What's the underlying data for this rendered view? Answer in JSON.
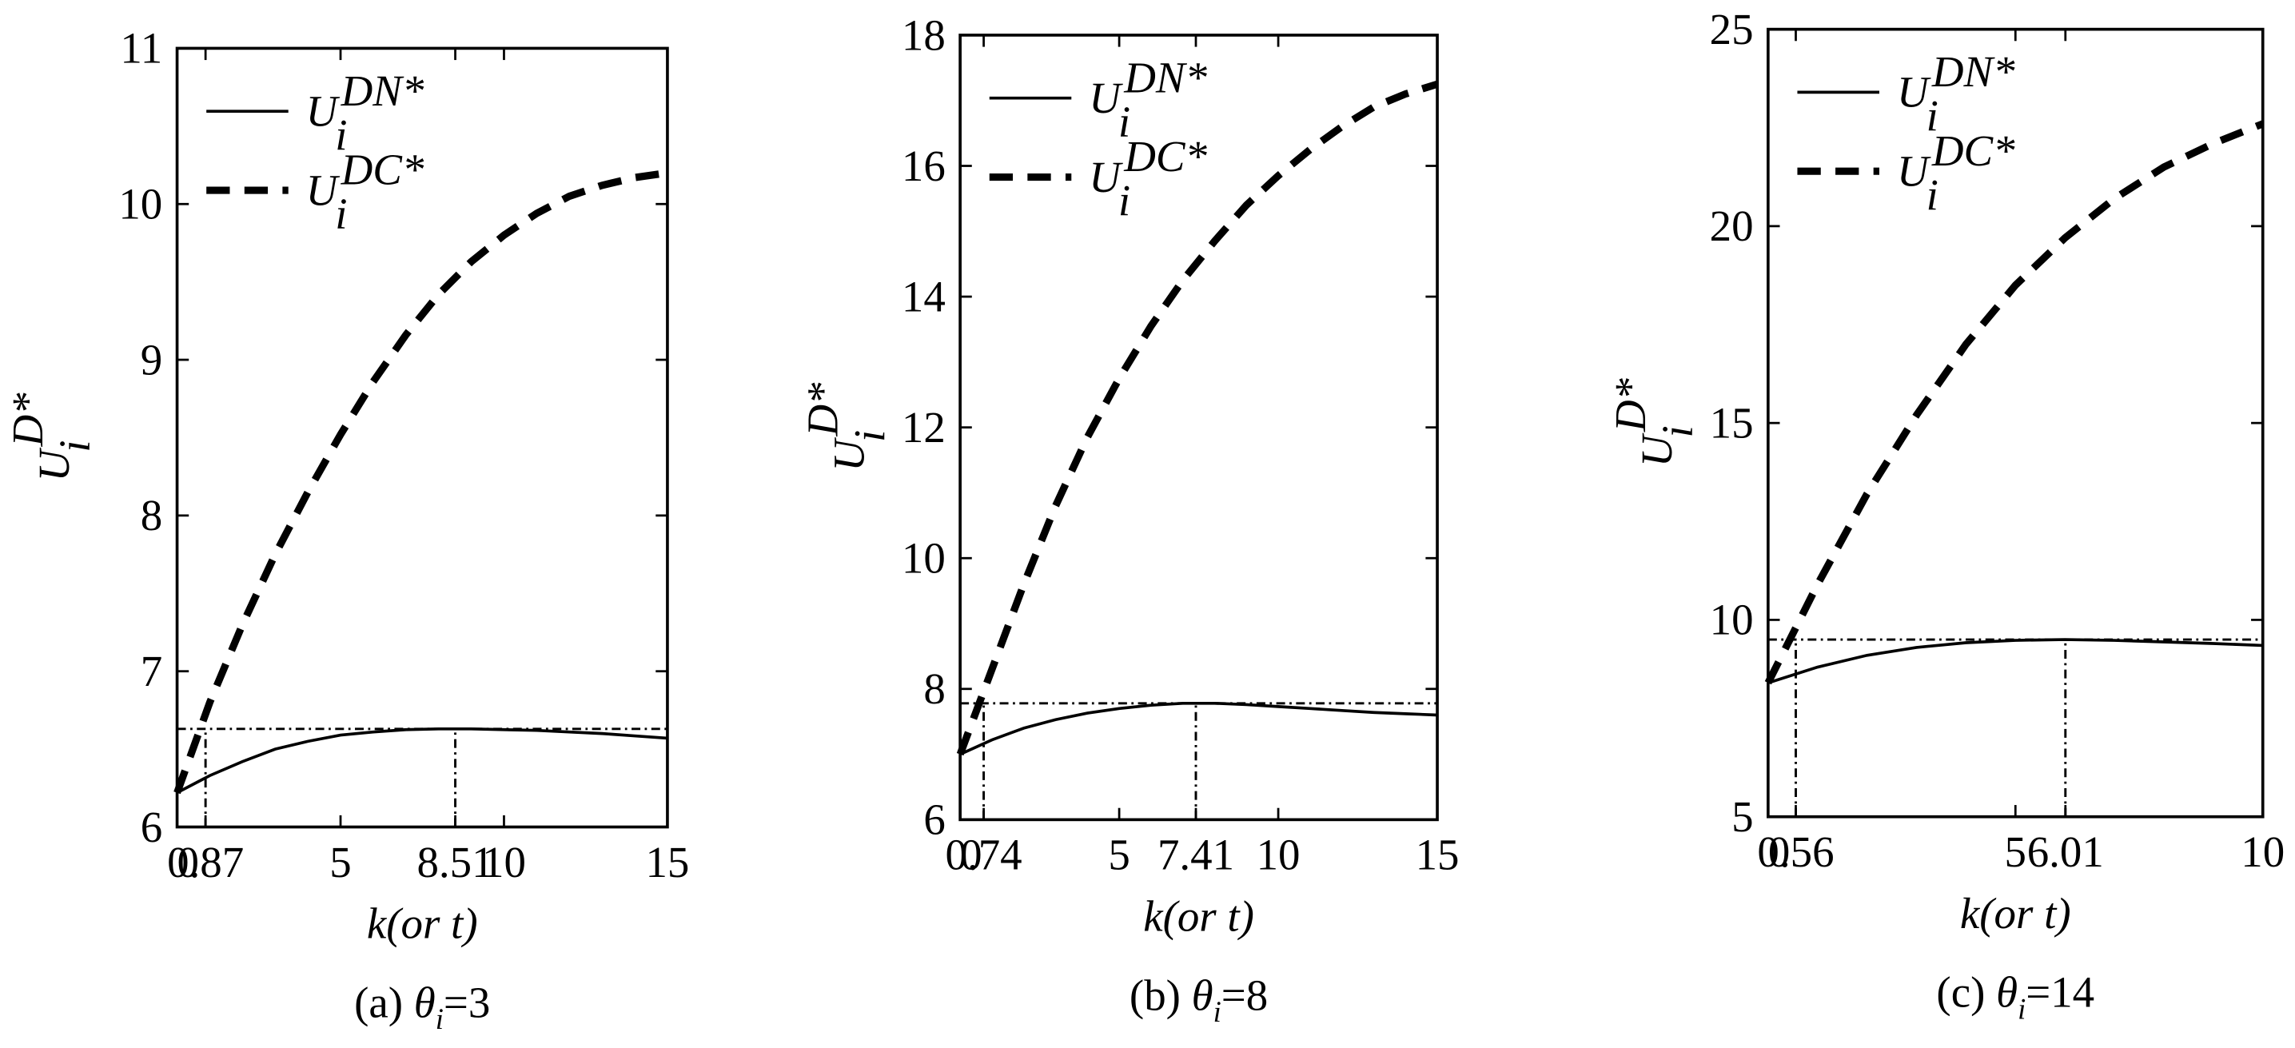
{
  "chart_data": [
    {
      "type": "line",
      "caption": {
        "prefix": "(a) ",
        "symbol": "θ",
        "subscript": "i",
        "suffix": "=3"
      },
      "xlabel": "k(or t)",
      "ylabel": {
        "symbol": "U",
        "superscript": "D*",
        "subscript": "i"
      },
      "x": [
        0,
        1,
        2,
        3,
        4,
        5,
        6,
        7,
        8,
        9,
        10,
        11,
        12,
        13,
        14,
        15
      ],
      "series": [
        {
          "name": "U",
          "subscript": "i",
          "superscript": "DN*",
          "color": "#000000",
          "style": "solid",
          "values": [
            6.22,
            6.33,
            6.42,
            6.5,
            6.55,
            6.59,
            6.61,
            6.625,
            6.63,
            6.63,
            6.625,
            6.62,
            6.61,
            6.6,
            6.585,
            6.57
          ]
        },
        {
          "name": "U",
          "subscript": "i",
          "superscript": "DC*",
          "color": "#000000",
          "style": "dashed",
          "values": [
            6.22,
            6.8,
            7.3,
            7.75,
            8.15,
            8.52,
            8.86,
            9.16,
            9.42,
            9.63,
            9.8,
            9.94,
            10.05,
            10.12,
            10.17,
            10.2
          ]
        }
      ],
      "ref_lines": {
        "y": 6.63,
        "x": [
          0.87,
          8.51
        ]
      },
      "xlim": [
        0,
        15
      ],
      "xticks": [
        0,
        0.87,
        5,
        8.51,
        10,
        15
      ],
      "ylim": [
        6,
        11
      ],
      "yticks": [
        6,
        7,
        8,
        9,
        10,
        11
      ],
      "legend": "upper left"
    },
    {
      "type": "line",
      "caption": {
        "prefix": "(b) ",
        "symbol": "θ",
        "subscript": "i",
        "suffix": "=8"
      },
      "xlabel": "k(or t)",
      "ylabel": {
        "symbol": "U",
        "superscript": "D*",
        "subscript": "i"
      },
      "x": [
        0,
        1,
        2,
        3,
        4,
        5,
        6,
        7,
        8,
        9,
        10,
        11,
        12,
        13,
        14,
        15
      ],
      "series": [
        {
          "name": "U",
          "subscript": "i",
          "superscript": "DN*",
          "color": "#000000",
          "style": "solid",
          "values": [
            7.0,
            7.22,
            7.4,
            7.53,
            7.63,
            7.7,
            7.75,
            7.78,
            7.78,
            7.76,
            7.73,
            7.7,
            7.67,
            7.64,
            7.62,
            7.6
          ]
        },
        {
          "name": "U",
          "subscript": "i",
          "superscript": "DC*",
          "color": "#000000",
          "style": "dashed",
          "values": [
            7.0,
            8.3,
            9.6,
            10.8,
            11.85,
            12.75,
            13.55,
            14.25,
            14.85,
            15.4,
            15.85,
            16.25,
            16.6,
            16.9,
            17.1,
            17.25
          ]
        }
      ],
      "ref_lines": {
        "y": 7.78,
        "x": [
          0.74,
          7.41
        ]
      },
      "xlim": [
        0,
        15
      ],
      "xticks": [
        0,
        0.74,
        5,
        7.41,
        10,
        15
      ],
      "ylim": [
        6,
        18
      ],
      "yticks": [
        6,
        8,
        10,
        12,
        14,
        16,
        18
      ],
      "legend": "upper left"
    },
    {
      "type": "line",
      "caption": {
        "prefix": "(c) ",
        "symbol": "θ",
        "subscript": "i",
        "suffix": "=14"
      },
      "xlabel": "k(or t)",
      "ylabel": {
        "symbol": "U",
        "superscript": "D*",
        "subscript": "i"
      },
      "x": [
        0,
        1,
        2,
        3,
        4,
        5,
        6,
        7,
        8,
        9,
        10
      ],
      "series": [
        {
          "name": "U",
          "subscript": "i",
          "superscript": "DN*",
          "color": "#000000",
          "style": "solid",
          "values": [
            8.4,
            8.8,
            9.1,
            9.3,
            9.42,
            9.48,
            9.5,
            9.48,
            9.44,
            9.4,
            9.35
          ]
        },
        {
          "name": "U",
          "subscript": "i",
          "superscript": "DC*",
          "color": "#000000",
          "style": "dashed",
          "values": [
            8.4,
            10.9,
            13.2,
            15.2,
            17.0,
            18.5,
            19.7,
            20.7,
            21.5,
            22.1,
            22.6
          ]
        }
      ],
      "ref_lines": {
        "y": 9.5,
        "x": [
          0.56,
          6.01
        ]
      },
      "xlim": [
        0,
        10
      ],
      "xticks": [
        0,
        0.56,
        5,
        6.01,
        10
      ],
      "ylim": [
        5,
        25
      ],
      "yticks": [
        5,
        10,
        15,
        20,
        25
      ],
      "legend": "upper left"
    }
  ]
}
